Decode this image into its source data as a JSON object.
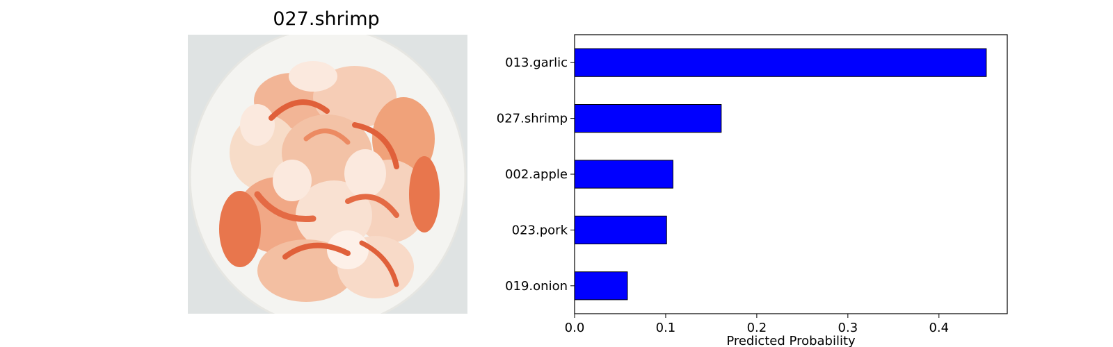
{
  "image_panel": {
    "title": "027.shrimp",
    "photo_icon": "shrimp-on-plate-photo"
  },
  "colors": {
    "bar_fill": "#0000ff",
    "bar_edge": "#000000",
    "plate": "#f2f2ef",
    "shrimp_light": "#f7dcc8",
    "shrimp_mid": "#f0a27a",
    "shrimp_dark": "#e0603a"
  },
  "chart_data": {
    "type": "bar",
    "orientation": "horizontal",
    "categories": [
      "013.garlic",
      "027.shrimp",
      "002.apple",
      "023.pork",
      "019.onion"
    ],
    "values": [
      0.452,
      0.161,
      0.108,
      0.101,
      0.058
    ],
    "title": "",
    "xlabel": "Predicted Probability",
    "ylabel": "",
    "xlim": [
      0,
      0.475
    ],
    "xticks": [
      0.0,
      0.1,
      0.2,
      0.3,
      0.4
    ],
    "xtick_labels": [
      "0.0",
      "0.1",
      "0.2",
      "0.3",
      "0.4"
    ],
    "grid": false,
    "legend": "none"
  }
}
